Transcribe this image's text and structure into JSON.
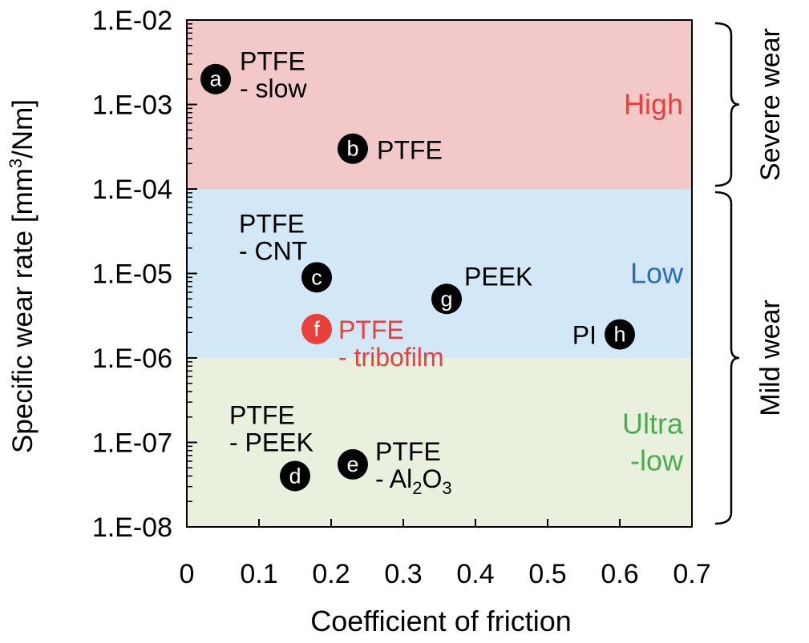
{
  "chart_data": {
    "type": "scatter",
    "xlabel": "Coefficient of friction",
    "ylabel_prefix": "Specific wear rate [mm",
    "ylabel_sup": "3",
    "ylabel_suffix": "/Nm]",
    "xlim": [
      0,
      0.7
    ],
    "ylim": [
      1e-08,
      0.01
    ],
    "yscale": "log",
    "grid": false,
    "x_ticks": [
      {
        "value": 0,
        "label": "0"
      },
      {
        "value": 0.1,
        "label": "0.1"
      },
      {
        "value": 0.2,
        "label": "0.2"
      },
      {
        "value": 0.3,
        "label": "0.3"
      },
      {
        "value": 0.4,
        "label": "0.4"
      },
      {
        "value": 0.5,
        "label": "0.5"
      },
      {
        "value": 0.6,
        "label": "0.6"
      },
      {
        "value": 0.7,
        "label": "0.7"
      }
    ],
    "y_ticks": [
      {
        "value": 0.01,
        "label": "1.E-02"
      },
      {
        "value": 0.001,
        "label": "1.E-03"
      },
      {
        "value": 0.0001,
        "label": "1.E-04"
      },
      {
        "value": 1e-05,
        "label": "1.E-05"
      },
      {
        "value": 1e-06,
        "label": "1.E-06"
      },
      {
        "value": 1e-07,
        "label": "1.E-07"
      },
      {
        "value": 1e-08,
        "label": "1.E-08"
      }
    ],
    "regions": [
      {
        "name": "High",
        "y_from": 0.0001,
        "y_to": 0.01,
        "color": "#f2c9c8",
        "label_color": "#e8403a",
        "label_lines": [
          "High"
        ]
      },
      {
        "name": "Low",
        "y_from": 1e-06,
        "y_to": 0.0001,
        "color": "#d3e8f6",
        "label_color": "#2f6db5",
        "label_lines": [
          "Low"
        ]
      },
      {
        "name": "Ultra-low",
        "y_from": 1e-08,
        "y_to": 1e-06,
        "color": "#e9f0dd",
        "label_color": "#4aae4f",
        "label_lines": [
          "Ultra",
          "-low"
        ]
      }
    ],
    "brackets": [
      {
        "label": "Severe wear",
        "y_from": 0.0001,
        "y_to": 0.01
      },
      {
        "label": "Mild wear",
        "y_from": 1e-08,
        "y_to": 0.0001
      }
    ],
    "points": [
      {
        "marker": "a",
        "x": 0.04,
        "y": 0.002,
        "color": "#000000",
        "label_lines": [
          "PTFE",
          "- slow"
        ],
        "label_color": "#000000"
      },
      {
        "marker": "b",
        "x": 0.23,
        "y": 0.0003,
        "color": "#000000",
        "label_lines": [
          "PTFE"
        ],
        "label_color": "#000000"
      },
      {
        "marker": "c",
        "x": 0.18,
        "y": 9e-06,
        "color": "#000000",
        "label_lines": [
          "PTFE",
          "- CNT"
        ],
        "label_color": "#000000"
      },
      {
        "marker": "d",
        "x": 0.15,
        "y": 4e-08,
        "color": "#000000",
        "label_lines": [
          "PTFE",
          "- PEEK"
        ],
        "label_color": "#000000"
      },
      {
        "marker": "e",
        "x": 0.23,
        "y": 5.5e-08,
        "color": "#000000",
        "label_lines": [
          "PTFE",
          "- Al"
        ],
        "label_sub": "2",
        "label_tail": "O",
        "label_sub2": "3",
        "label_color": "#000000"
      },
      {
        "marker": "f",
        "x": 0.18,
        "y": 2.2e-06,
        "color": "#e8403a",
        "label_lines": [
          "PTFE",
          "- tribofilm"
        ],
        "label_color": "#e8403a"
      },
      {
        "marker": "g",
        "x": 0.36,
        "y": 5e-06,
        "color": "#000000",
        "label_lines": [
          "PEEK"
        ],
        "label_color": "#000000"
      },
      {
        "marker": "h",
        "x": 0.6,
        "y": 1.9e-06,
        "color": "#000000",
        "label_lines": [
          "PI"
        ],
        "label_color": "#000000"
      }
    ]
  }
}
